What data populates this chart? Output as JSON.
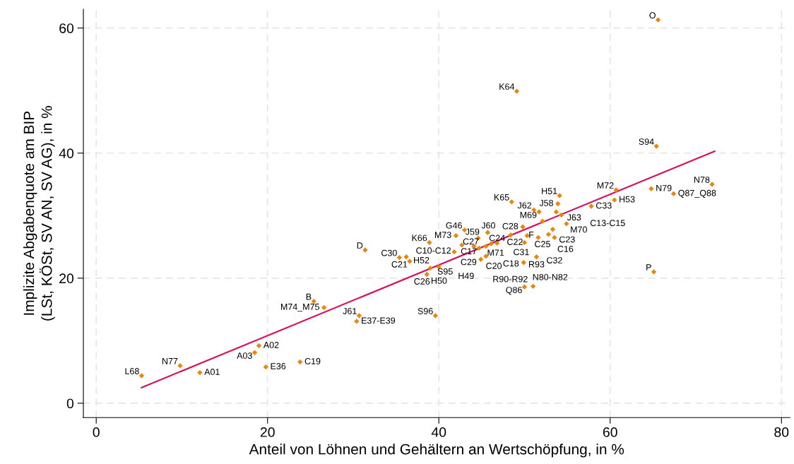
{
  "chart_data": {
    "type": "scatter",
    "xlabel": "Anteil von Löhnen und Gehältern an Wertschöpfung, in %",
    "ylabel": "Implizite Abgabenquote am BIP\n(LSt, KÖSt, SV AN, SV AG), in %",
    "xlim": [
      -1.5,
      81
    ],
    "ylim": [
      -2.3,
      63
    ],
    "xticks": [
      0,
      20,
      40,
      60,
      80
    ],
    "yticks": [
      0,
      20,
      40,
      60
    ],
    "grid": true,
    "marker": "diamond",
    "series": [
      {
        "color": "#e8870b",
        "x": [
          65.6,
          49.1,
          65.4,
          71.9,
          64.8,
          60.7,
          67.4,
          60.5,
          54.1,
          48.5,
          53.9,
          51.1,
          51.7,
          53.7,
          54.3,
          57.8,
          52.1,
          54.9,
          49.8,
          53.3,
          52.8,
          50.3,
          51.6,
          53.5,
          50.0,
          48.4,
          45.7,
          43.0,
          42.0,
          38.9,
          44.6,
          42.7,
          41.8,
          44.1,
          44.7,
          45.5,
          46.1,
          46.8,
          45.5,
          44.9,
          51.4,
          49.9,
          31.4,
          35.4,
          36.2,
          36.6,
          39.0,
          40.0,
          38.6,
          65.1,
          50.0,
          51.0,
          25.4,
          26.6,
          30.7,
          30.4,
          39.6,
          19.0,
          18.5,
          19.8,
          23.8,
          9.8,
          12.1,
          5.3
        ],
        "values": [
          61.3,
          49.9,
          41.1,
          35.0,
          34.3,
          34.1,
          33.5,
          32.5,
          33.2,
          32.2,
          31.9,
          30.9,
          30.6,
          30.6,
          30.1,
          31.5,
          29.1,
          28.7,
          28.2,
          27.8,
          27.0,
          26.8,
          26.5,
          26.5,
          25.7,
          26.9,
          27.3,
          27.7,
          26.8,
          25.7,
          26.4,
          25.3,
          24.2,
          25.1,
          24.8,
          25.1,
          25.5,
          25.6,
          23.5,
          23.0,
          23.4,
          22.5,
          24.5,
          23.3,
          23.4,
          22.7,
          21.6,
          21.8,
          20.6,
          21.0,
          18.6,
          18.7,
          16.3,
          15.3,
          14.0,
          13.1,
          14.0,
          9.2,
          8.1,
          5.8,
          6.6,
          6.0,
          4.9,
          4.4
        ]
      },
      {
        "type": "line",
        "color": "#d6145e",
        "marker": "none",
        "x": [
          5.3,
          72.2
        ],
        "values": [
          2.5,
          40.3
        ]
      }
    ],
    "annotations": [
      {
        "text": "O",
        "x": 65.6,
        "y": 61.3
      },
      {
        "text": "K64",
        "x": 49.1,
        "y": 49.9
      },
      {
        "text": "S94",
        "x": 65.4,
        "y": 41.1
      },
      {
        "text": "N78",
        "x": 71.9,
        "y": 35.0
      },
      {
        "text": "N79",
        "x": 64.8,
        "y": 34.3
      },
      {
        "text": "M72",
        "x": 60.7,
        "y": 34.1
      },
      {
        "text": "Q87_Q88",
        "x": 67.4,
        "y": 33.5
      },
      {
        "text": "H53",
        "x": 60.5,
        "y": 32.5
      },
      {
        "text": "H51",
        "x": 54.1,
        "y": 33.2
      },
      {
        "text": "K65",
        "x": 48.5,
        "y": 32.2
      },
      {
        "text": "J58",
        "x": 53.9,
        "y": 31.9
      },
      {
        "text": "J62",
        "x": 51.1,
        "y": 30.9
      },
      {
        "text": "M69",
        "x": 51.7,
        "y": 30.6
      },
      {
        "text": "J63",
        "x": 53.7,
        "y": 30.6
      },
      {
        "text": "M70",
        "x": 54.3,
        "y": 30.1
      },
      {
        "text": "C33",
        "x": 57.8,
        "y": 31.5
      },
      {
        "text": "C25",
        "x": 52.1,
        "y": 29.1
      },
      {
        "text": "C13-C15",
        "x": 54.9,
        "y": 28.7
      },
      {
        "text": "C28",
        "x": 49.8,
        "y": 28.2
      },
      {
        "text": "C23",
        "x": 53.3,
        "y": 27.8
      },
      {
        "text": "C16",
        "x": 52.8,
        "y": 27.0
      },
      {
        "text": "C22",
        "x": 50.3,
        "y": 26.8
      },
      {
        "text": "C31",
        "x": 51.6,
        "y": 26.5
      },
      {
        "text": "C32",
        "x": 53.5,
        "y": 26.5
      },
      {
        "text": "F",
        "x": 50.0,
        "y": 25.7
      },
      {
        "text": "J60",
        "x": 48.4,
        "y": 26.9
      },
      {
        "text": "J59",
        "x": 45.7,
        "y": 27.3
      },
      {
        "text": "G46",
        "x": 43.0,
        "y": 27.7
      },
      {
        "text": "M73",
        "x": 42.0,
        "y": 26.8
      },
      {
        "text": "K66",
        "x": 38.9,
        "y": 25.7
      },
      {
        "text": "M71",
        "x": 44.6,
        "y": 26.4
      },
      {
        "text": "C10-C12",
        "x": 42.7,
        "y": 25.3
      },
      {
        "text": "C29",
        "x": 41.8,
        "y": 24.2
      },
      {
        "text": "C20",
        "x": 44.1,
        "y": 25.1
      },
      {
        "text": "C17",
        "x": 44.7,
        "y": 24.8
      },
      {
        "text": "C27",
        "x": 45.5,
        "y": 25.1
      },
      {
        "text": "C18",
        "x": 46.1,
        "y": 25.5
      },
      {
        "text": "C24",
        "x": 46.8,
        "y": 25.6
      },
      {
        "text": "H49",
        "x": 45.5,
        "y": 23.5
      },
      {
        "text": "R90-R92",
        "x": 44.9,
        "y": 23.0
      },
      {
        "text": "R93",
        "x": 51.4,
        "y": 23.4
      },
      {
        "text": "N80-N82",
        "x": 49.9,
        "y": 22.5
      },
      {
        "text": "D",
        "x": 31.4,
        "y": 24.5
      },
      {
        "text": "C30",
        "x": 35.4,
        "y": 23.3
      },
      {
        "text": "H52",
        "x": 36.2,
        "y": 23.4
      },
      {
        "text": "C21",
        "x": 36.6,
        "y": 22.7
      },
      {
        "text": "S95",
        "x": 39.0,
        "y": 21.6
      },
      {
        "text": "C26",
        "x": 40.0,
        "y": 21.8
      },
      {
        "text": "H50",
        "x": 38.6,
        "y": 20.6
      },
      {
        "text": "P",
        "x": 65.1,
        "y": 21.0
      },
      {
        "text": "Q86",
        "x": 50.0,
        "y": 18.6
      },
      {
        "text": "B",
        "x": 25.4,
        "y": 16.3
      },
      {
        "text": "M74_M75",
        "x": 26.6,
        "y": 15.3
      },
      {
        "text": "J61",
        "x": 30.7,
        "y": 14.0
      },
      {
        "text": "E37-E39",
        "x": 30.4,
        "y": 13.1
      },
      {
        "text": "S96",
        "x": 39.6,
        "y": 14.0
      },
      {
        "text": "A02",
        "x": 19.0,
        "y": 9.2
      },
      {
        "text": "A03",
        "x": 18.5,
        "y": 8.1
      },
      {
        "text": "E36",
        "x": 19.8,
        "y": 5.8
      },
      {
        "text": "C19",
        "x": 23.8,
        "y": 6.6
      },
      {
        "text": "N77",
        "x": 9.8,
        "y": 6.0
      },
      {
        "text": "A01",
        "x": 12.1,
        "y": 4.9
      },
      {
        "text": "L68",
        "x": 5.3,
        "y": 4.4
      }
    ]
  }
}
